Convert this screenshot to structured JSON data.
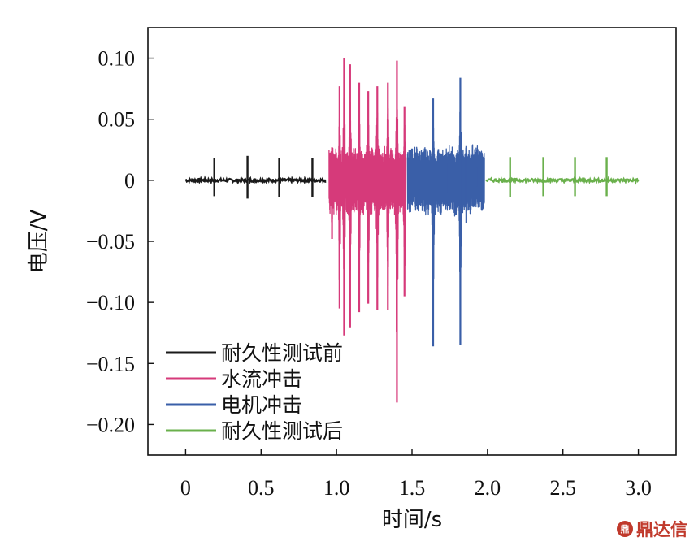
{
  "chart_data": {
    "type": "line",
    "title": "",
    "xlabel": "时间/s",
    "ylabel": "电压/V",
    "xlim": [
      -0.25,
      3.25
    ],
    "ylim": [
      -0.225,
      0.125
    ],
    "x_ticks": [
      0,
      0.5,
      1.0,
      1.5,
      2.0,
      2.5,
      3.0
    ],
    "x_tick_labels": [
      "0",
      "0.5",
      "1.0",
      "1.5",
      "2.0",
      "2.5",
      "3.0"
    ],
    "y_ticks": [
      0.1,
      0.05,
      0,
      -0.05,
      -0.1,
      -0.15,
      -0.2
    ],
    "y_tick_labels": [
      "0.10",
      "0.05",
      "0",
      "−0.05",
      "−0.10",
      "−0.15",
      "−0.20"
    ],
    "grid": false,
    "legend_position": "bottom-left",
    "series": [
      {
        "name": "耐久性测试前",
        "color": "#1a1a1a",
        "x_range": [
          0,
          0.93
        ],
        "baseline": 0,
        "spikes": [
          {
            "x": 0.19,
            "max": 0.018,
            "min": -0.013
          },
          {
            "x": 0.41,
            "max": 0.02,
            "min": -0.015
          },
          {
            "x": 0.62,
            "max": 0.018,
            "min": -0.014
          },
          {
            "x": 0.84,
            "max": 0.018,
            "min": -0.014
          }
        ]
      },
      {
        "name": "水流冲击",
        "color": "#d63a7a",
        "x_range": [
          0.95,
          1.46
        ],
        "min_value": -0.182,
        "max_value": 0.1,
        "peaks": [
          {
            "x": 0.97,
            "max": 0.027,
            "min": -0.048
          },
          {
            "x": 1.02,
            "max": 0.077,
            "min": -0.105
          },
          {
            "x": 1.05,
            "max": 0.1,
            "min": -0.127
          },
          {
            "x": 1.09,
            "max": 0.095,
            "min": -0.121
          },
          {
            "x": 1.15,
            "max": 0.08,
            "min": -0.108
          },
          {
            "x": 1.21,
            "max": 0.073,
            "min": -0.101
          },
          {
            "x": 1.27,
            "max": 0.077,
            "min": -0.106
          },
          {
            "x": 1.34,
            "max": 0.08,
            "min": -0.106
          },
          {
            "x": 1.4,
            "max": 0.098,
            "min": -0.182
          },
          {
            "x": 1.45,
            "max": 0.06,
            "min": -0.095
          }
        ]
      },
      {
        "name": "电机冲击",
        "color": "#3a5fa8",
        "x_range": [
          1.47,
          1.98
        ],
        "min_value": -0.136,
        "max_value": 0.084,
        "peaks": [
          {
            "x": 1.5,
            "max": 0.026,
            "min": -0.01
          },
          {
            "x": 1.55,
            "max": 0.016,
            "min": -0.008
          },
          {
            "x": 1.64,
            "max": 0.067,
            "min": -0.136
          },
          {
            "x": 1.69,
            "max": 0.022,
            "min": -0.028
          },
          {
            "x": 1.74,
            "max": 0.014,
            "min": -0.01
          },
          {
            "x": 1.82,
            "max": 0.084,
            "min": -0.135
          },
          {
            "x": 1.86,
            "max": 0.028,
            "min": -0.035
          },
          {
            "x": 1.93,
            "max": 0.01,
            "min": -0.005
          }
        ]
      },
      {
        "name": "耐久性测试后",
        "color": "#6ab04c",
        "x_range": [
          1.99,
          3.0
        ],
        "baseline": 0,
        "spikes": [
          {
            "x": 2.15,
            "max": 0.019,
            "min": -0.014
          },
          {
            "x": 2.37,
            "max": 0.019,
            "min": -0.013
          },
          {
            "x": 2.58,
            "max": 0.019,
            "min": -0.013
          },
          {
            "x": 2.79,
            "max": 0.019,
            "min": -0.013
          }
        ]
      }
    ]
  },
  "watermark": {
    "logo": "鼎",
    "text": "鼎达信"
  }
}
